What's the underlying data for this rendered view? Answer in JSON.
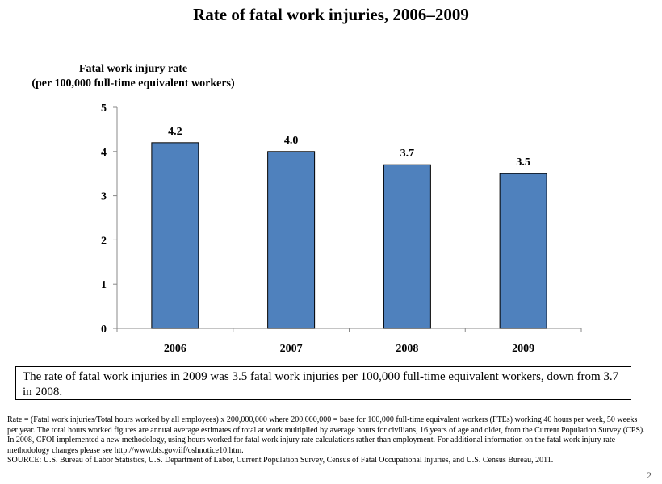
{
  "title": "Rate of fatal work injuries, 2006–2009",
  "chart_data": {
    "type": "bar",
    "categories": [
      "2006",
      "2007",
      "2008",
      "2009"
    ],
    "values": [
      4.2,
      4.0,
      3.7,
      3.5
    ],
    "data_labels": [
      "4.2",
      "4.0",
      "3.7",
      "3.5"
    ],
    "ylabel_lines": [
      "Fatal work injury rate",
      "(per 100,000 full-time equivalent workers)"
    ],
    "xlabel": "",
    "ylim": [
      0,
      5
    ],
    "yticks": [
      "0",
      "1",
      "2",
      "3",
      "4",
      "5"
    ],
    "grid": false,
    "legend": "none",
    "bar_color": "#4f81bd",
    "bar_border_color": "#000000"
  },
  "summary": "The rate of fatal work injuries in 2009 was 3.5 fatal work injuries per 100,000 full-time equivalent workers, down from 3.7 in 2008.",
  "notes": [
    "Rate = (Fatal work injuries/Total hours worked by all employees) x 200,000,000  where 200,000,000 = base for 100,000 full-time equivalent workers (FTEs) working 40 hours per week, 50 weeks per year.  The total hours worked figures are annual average estimates of total at work multiplied by average hours for civilians, 16 years of age and older, from the Current Population Survey (CPS).",
    "In 2008, CFOI implemented a new methodology, using hours worked for fatal work injury rate calculations rather than employment. For additional information on the fatal work injury rate methodology changes please see http://www.bls.gov/iif/oshnotice10.htm.",
    "SOURCE:  U.S. Bureau of Labor Statistics, U.S. Department of Labor, Current Population Survey, Census of Fatal Occupational Injuries, and U.S. Census Bureau, 2011."
  ],
  "page_number": "2"
}
